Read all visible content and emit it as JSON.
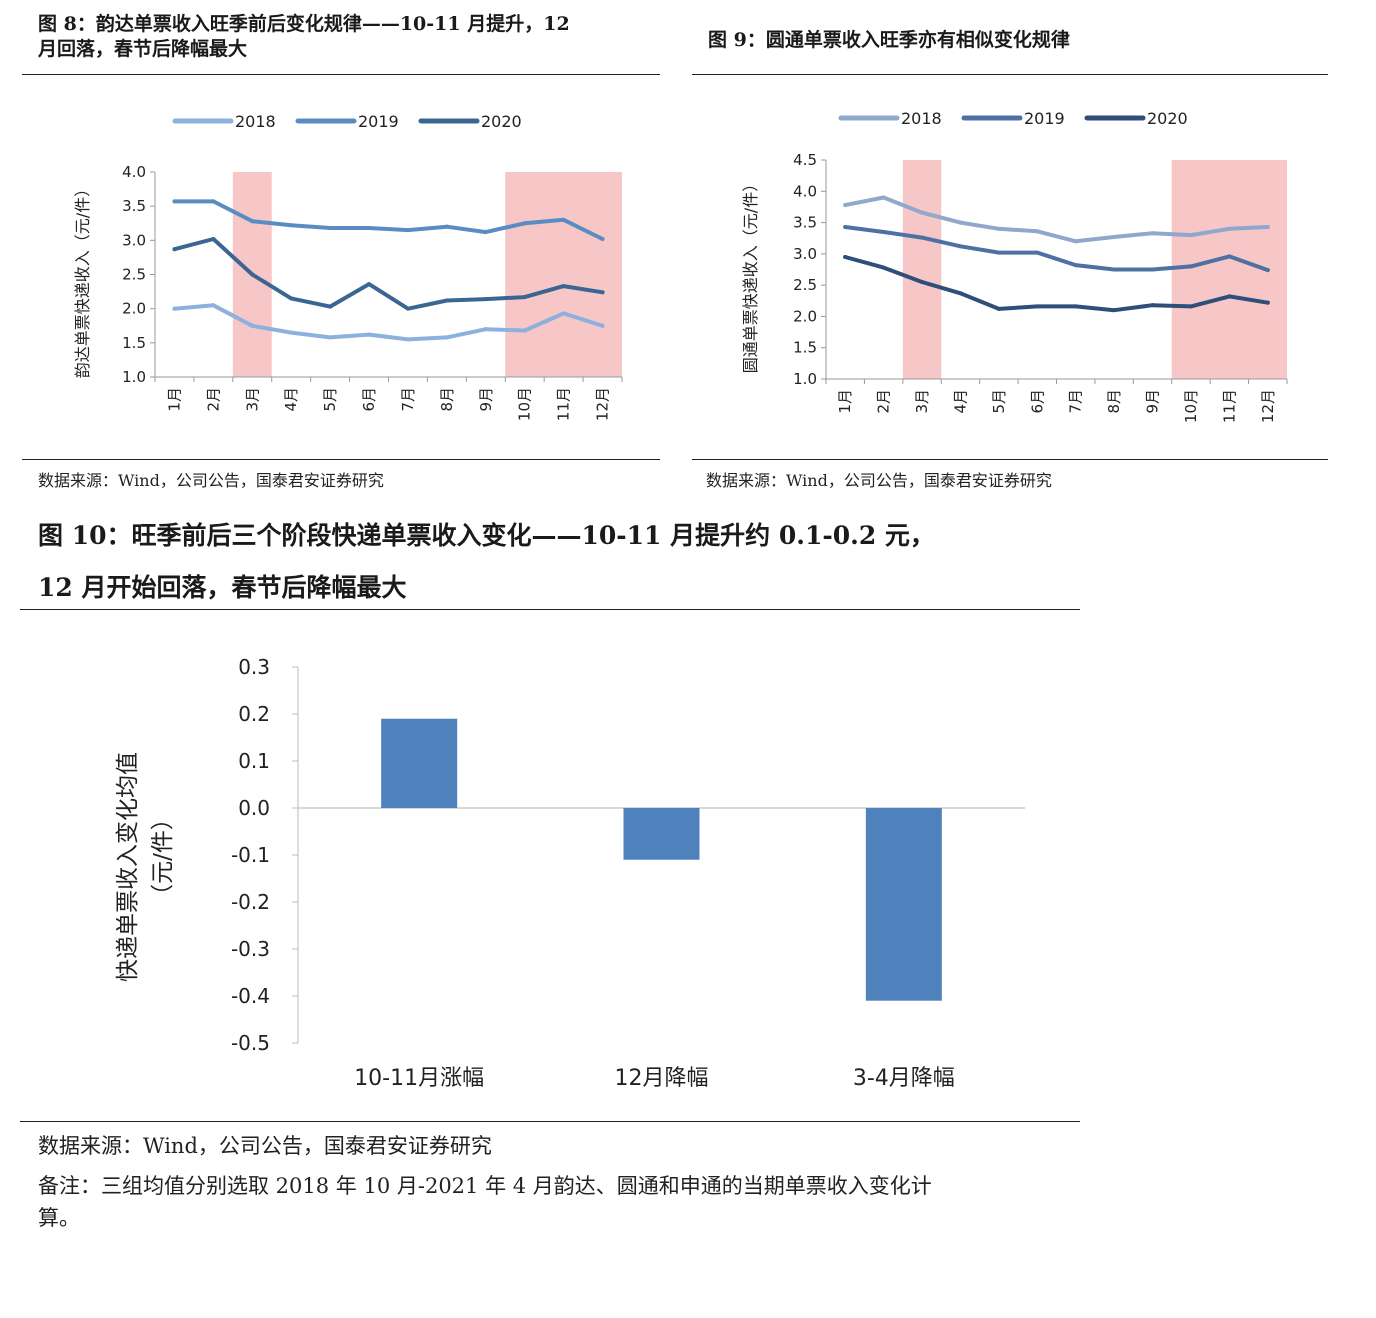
{
  "fig8": {
    "title_line1": "图 8：韵达单票收入旺季前后变化规律——10-11 月提升，12",
    "title_line2": "月回落，春节后降幅最大",
    "source": "数据来源：Wind，公司公告，国泰君安证券研究"
  },
  "fig9": {
    "title": "图 9：圆通单票收入旺季亦有相似变化规律",
    "source": "数据来源：Wind，公司公告，国泰君安证券研究"
  },
  "fig10": {
    "title_line1": "图 10：旺季前后三个阶段快递单票收入变化——10-11 月提升约 0.1-0.2 元，",
    "title_line2": "12 月开始回落，春节后降幅最大",
    "source": "数据来源：Wind，公司公告，国泰君安证券研究",
    "note_line1": "备注：三组均值分别选取 2018 年 10 月-2021 年 4 月韵达、圆通和申通的当期单票收入变化计",
    "note_line2": "算。"
  },
  "chart_data": [
    {
      "id": "fig8",
      "type": "line",
      "ylabel": "韵达单票快递收入（元/件）",
      "ylim": [
        1.0,
        4.0
      ],
      "yticks": [
        "1.0",
        "1.5",
        "2.0",
        "2.5",
        "3.0",
        "3.5",
        "4.0"
      ],
      "categories": [
        "1月",
        "2月",
        "3月",
        "4月",
        "5月",
        "6月",
        "7月",
        "8月",
        "9月",
        "10月",
        "11月",
        "12月"
      ],
      "shaded_ranges": [
        [
          2,
          3
        ],
        [
          9,
          12
        ]
      ],
      "legend_position": "top",
      "grid": false,
      "series": [
        {
          "name": "2018",
          "color": "#8db0dc",
          "values": [
            2.0,
            2.05,
            1.75,
            1.65,
            1.58,
            1.62,
            1.55,
            1.58,
            1.7,
            1.68,
            1.93,
            1.75
          ]
        },
        {
          "name": "2019",
          "color": "#5a8cc4",
          "values": [
            3.57,
            3.57,
            3.28,
            3.22,
            3.18,
            3.18,
            3.15,
            3.2,
            3.12,
            3.25,
            3.3,
            3.02
          ]
        },
        {
          "name": "2020",
          "color": "#3b6694",
          "values": [
            2.87,
            3.02,
            2.5,
            2.15,
            2.03,
            2.36,
            2.0,
            2.12,
            2.14,
            2.17,
            2.33,
            2.24
          ]
        }
      ]
    },
    {
      "id": "fig9",
      "type": "line",
      "ylabel": "圆通单票快递收入（元/件）",
      "ylim": [
        1.0,
        4.5
      ],
      "yticks": [
        "1.0",
        "1.5",
        "2.0",
        "2.5",
        "3.0",
        "3.5",
        "4.0",
        "4.5"
      ],
      "categories": [
        "1月",
        "2月",
        "3月",
        "4月",
        "5月",
        "6月",
        "7月",
        "8月",
        "9月",
        "10月",
        "11月",
        "12月"
      ],
      "shaded_ranges": [
        [
          2,
          3
        ],
        [
          9,
          12
        ]
      ],
      "legend_position": "top",
      "grid": false,
      "series": [
        {
          "name": "2018",
          "color": "#8fa8cc",
          "values": [
            3.78,
            3.9,
            3.66,
            3.5,
            3.4,
            3.36,
            3.2,
            3.27,
            3.33,
            3.3,
            3.4,
            3.43
          ]
        },
        {
          "name": "2019",
          "color": "#4d71a3",
          "values": [
            3.43,
            3.35,
            3.26,
            3.12,
            3.02,
            3.02,
            2.82,
            2.75,
            2.75,
            2.8,
            2.96,
            2.74
          ]
        },
        {
          "name": "2020",
          "color": "#2f4e7a",
          "values": [
            2.95,
            2.78,
            2.55,
            2.37,
            2.12,
            2.16,
            2.16,
            2.1,
            2.18,
            2.16,
            2.32,
            2.22
          ]
        }
      ]
    },
    {
      "id": "fig10",
      "type": "bar",
      "ylabel": "快递单票收入变化均值",
      "ylabel_unit": "（元/件）",
      "ylim": [
        -0.5,
        0.3
      ],
      "yticks": [
        "-0.5",
        "-0.4",
        "-0.3",
        "-0.2",
        "-0.1",
        "0.0",
        "0.1",
        "0.2",
        "0.3"
      ],
      "categories": [
        "10-11月涨幅",
        "12月降幅",
        "3-4月降幅"
      ],
      "values": [
        0.19,
        -0.11,
        -0.41
      ],
      "color": "#4f81bd",
      "grid": false
    }
  ]
}
